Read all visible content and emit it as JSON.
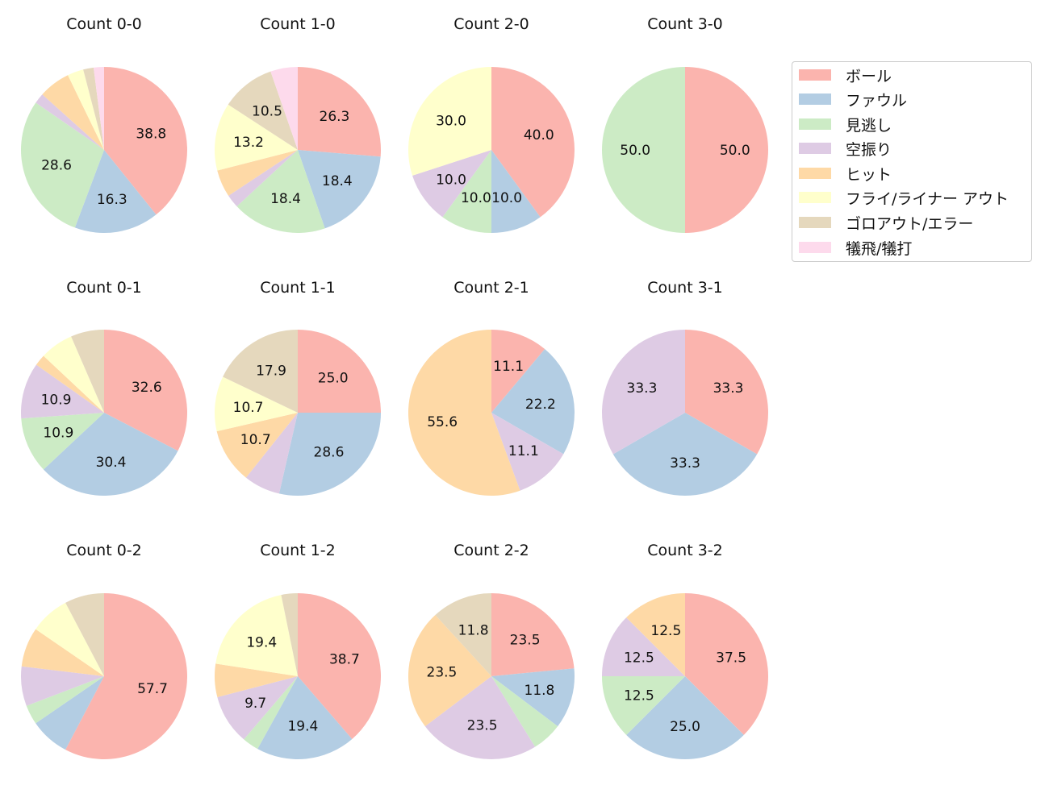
{
  "chart_data": {
    "type": "pie",
    "categories": [
      "ボール",
      "ファウル",
      "見逃し",
      "空振り",
      "ヒット",
      "フライ/ライナー アウト",
      "ゴロアウト/エラー",
      "犠飛/犠打"
    ],
    "colors": [
      "#fbb4ae",
      "#b3cde3",
      "#ccebc5",
      "#decbe4",
      "#fed9a6",
      "#ffffcc",
      "#e5d8bd",
      "#fddaec"
    ],
    "legend_position": "top-right",
    "pies": [
      {
        "title": "Count 0-0",
        "values": [
          38.8,
          16.3,
          28.6,
          2.0,
          6.1,
          3.1,
          2.0,
          2.0
        ],
        "labels": [
          "38.8",
          "16.3",
          "28.6",
          "",
          "",
          "",
          "",
          ""
        ]
      },
      {
        "title": "Count 1-0",
        "values": [
          26.3,
          18.4,
          18.4,
          2.6,
          5.3,
          13.2,
          10.5,
          5.3
        ],
        "labels": [
          "26.3",
          "18.4",
          "18.4",
          "",
          "",
          "13.2",
          "10.5",
          ""
        ]
      },
      {
        "title": "Count 2-0",
        "values": [
          40.0,
          10.0,
          10.0,
          10.0,
          0,
          30.0,
          0,
          0
        ],
        "labels": [
          "40.0",
          "10.0",
          "10.0",
          "10.0",
          "",
          "30.0",
          "",
          ""
        ]
      },
      {
        "title": "Count 3-0",
        "values": [
          50.0,
          0,
          50.0,
          0,
          0,
          0,
          0,
          0
        ],
        "labels": [
          "50.0",
          "",
          "50.0",
          "",
          "",
          "",
          "",
          ""
        ]
      },
      {
        "title": "Count 0-1",
        "values": [
          32.6,
          30.4,
          10.9,
          10.9,
          2.2,
          6.5,
          6.5,
          0
        ],
        "labels": [
          "32.6",
          "30.4",
          "10.9",
          "10.9",
          "",
          "",
          "",
          ""
        ]
      },
      {
        "title": "Count 1-1",
        "values": [
          25.0,
          28.6,
          0,
          7.1,
          10.7,
          10.7,
          17.9,
          0
        ],
        "labels": [
          "25.0",
          "28.6",
          "",
          "",
          "10.7",
          "10.7",
          "17.9",
          ""
        ]
      },
      {
        "title": "Count 2-1",
        "values": [
          11.1,
          22.2,
          0,
          11.1,
          55.6,
          0,
          0,
          0
        ],
        "labels": [
          "11.1",
          "22.2",
          "",
          "11.1",
          "55.6",
          "",
          "",
          ""
        ]
      },
      {
        "title": "Count 3-1",
        "values": [
          33.3,
          33.3,
          0,
          33.3,
          0,
          0,
          0,
          0
        ],
        "labels": [
          "33.3",
          "33.3",
          "",
          "33.3",
          "",
          "",
          "",
          ""
        ]
      },
      {
        "title": "Count 0-2",
        "values": [
          57.7,
          7.7,
          3.8,
          7.7,
          7.7,
          7.7,
          7.7,
          0
        ],
        "labels": [
          "57.7",
          "",
          "",
          "",
          "",
          "",
          "",
          ""
        ]
      },
      {
        "title": "Count 1-2",
        "values": [
          38.7,
          19.4,
          3.2,
          9.7,
          6.5,
          19.4,
          3.2,
          0
        ],
        "labels": [
          "38.7",
          "19.4",
          "",
          "9.7",
          "",
          "19.4",
          "",
          ""
        ]
      },
      {
        "title": "Count 2-2",
        "values": [
          23.5,
          11.8,
          5.9,
          23.5,
          23.5,
          0,
          11.8,
          0
        ],
        "labels": [
          "23.5",
          "11.8",
          "",
          "23.5",
          "23.5",
          "",
          "11.8",
          ""
        ]
      },
      {
        "title": "Count 3-2",
        "values": [
          37.5,
          25.0,
          12.5,
          12.5,
          12.5,
          0,
          0,
          0
        ],
        "labels": [
          "37.5",
          "25.0",
          "12.5",
          "12.5",
          "12.5",
          "",
          "",
          ""
        ]
      }
    ]
  }
}
